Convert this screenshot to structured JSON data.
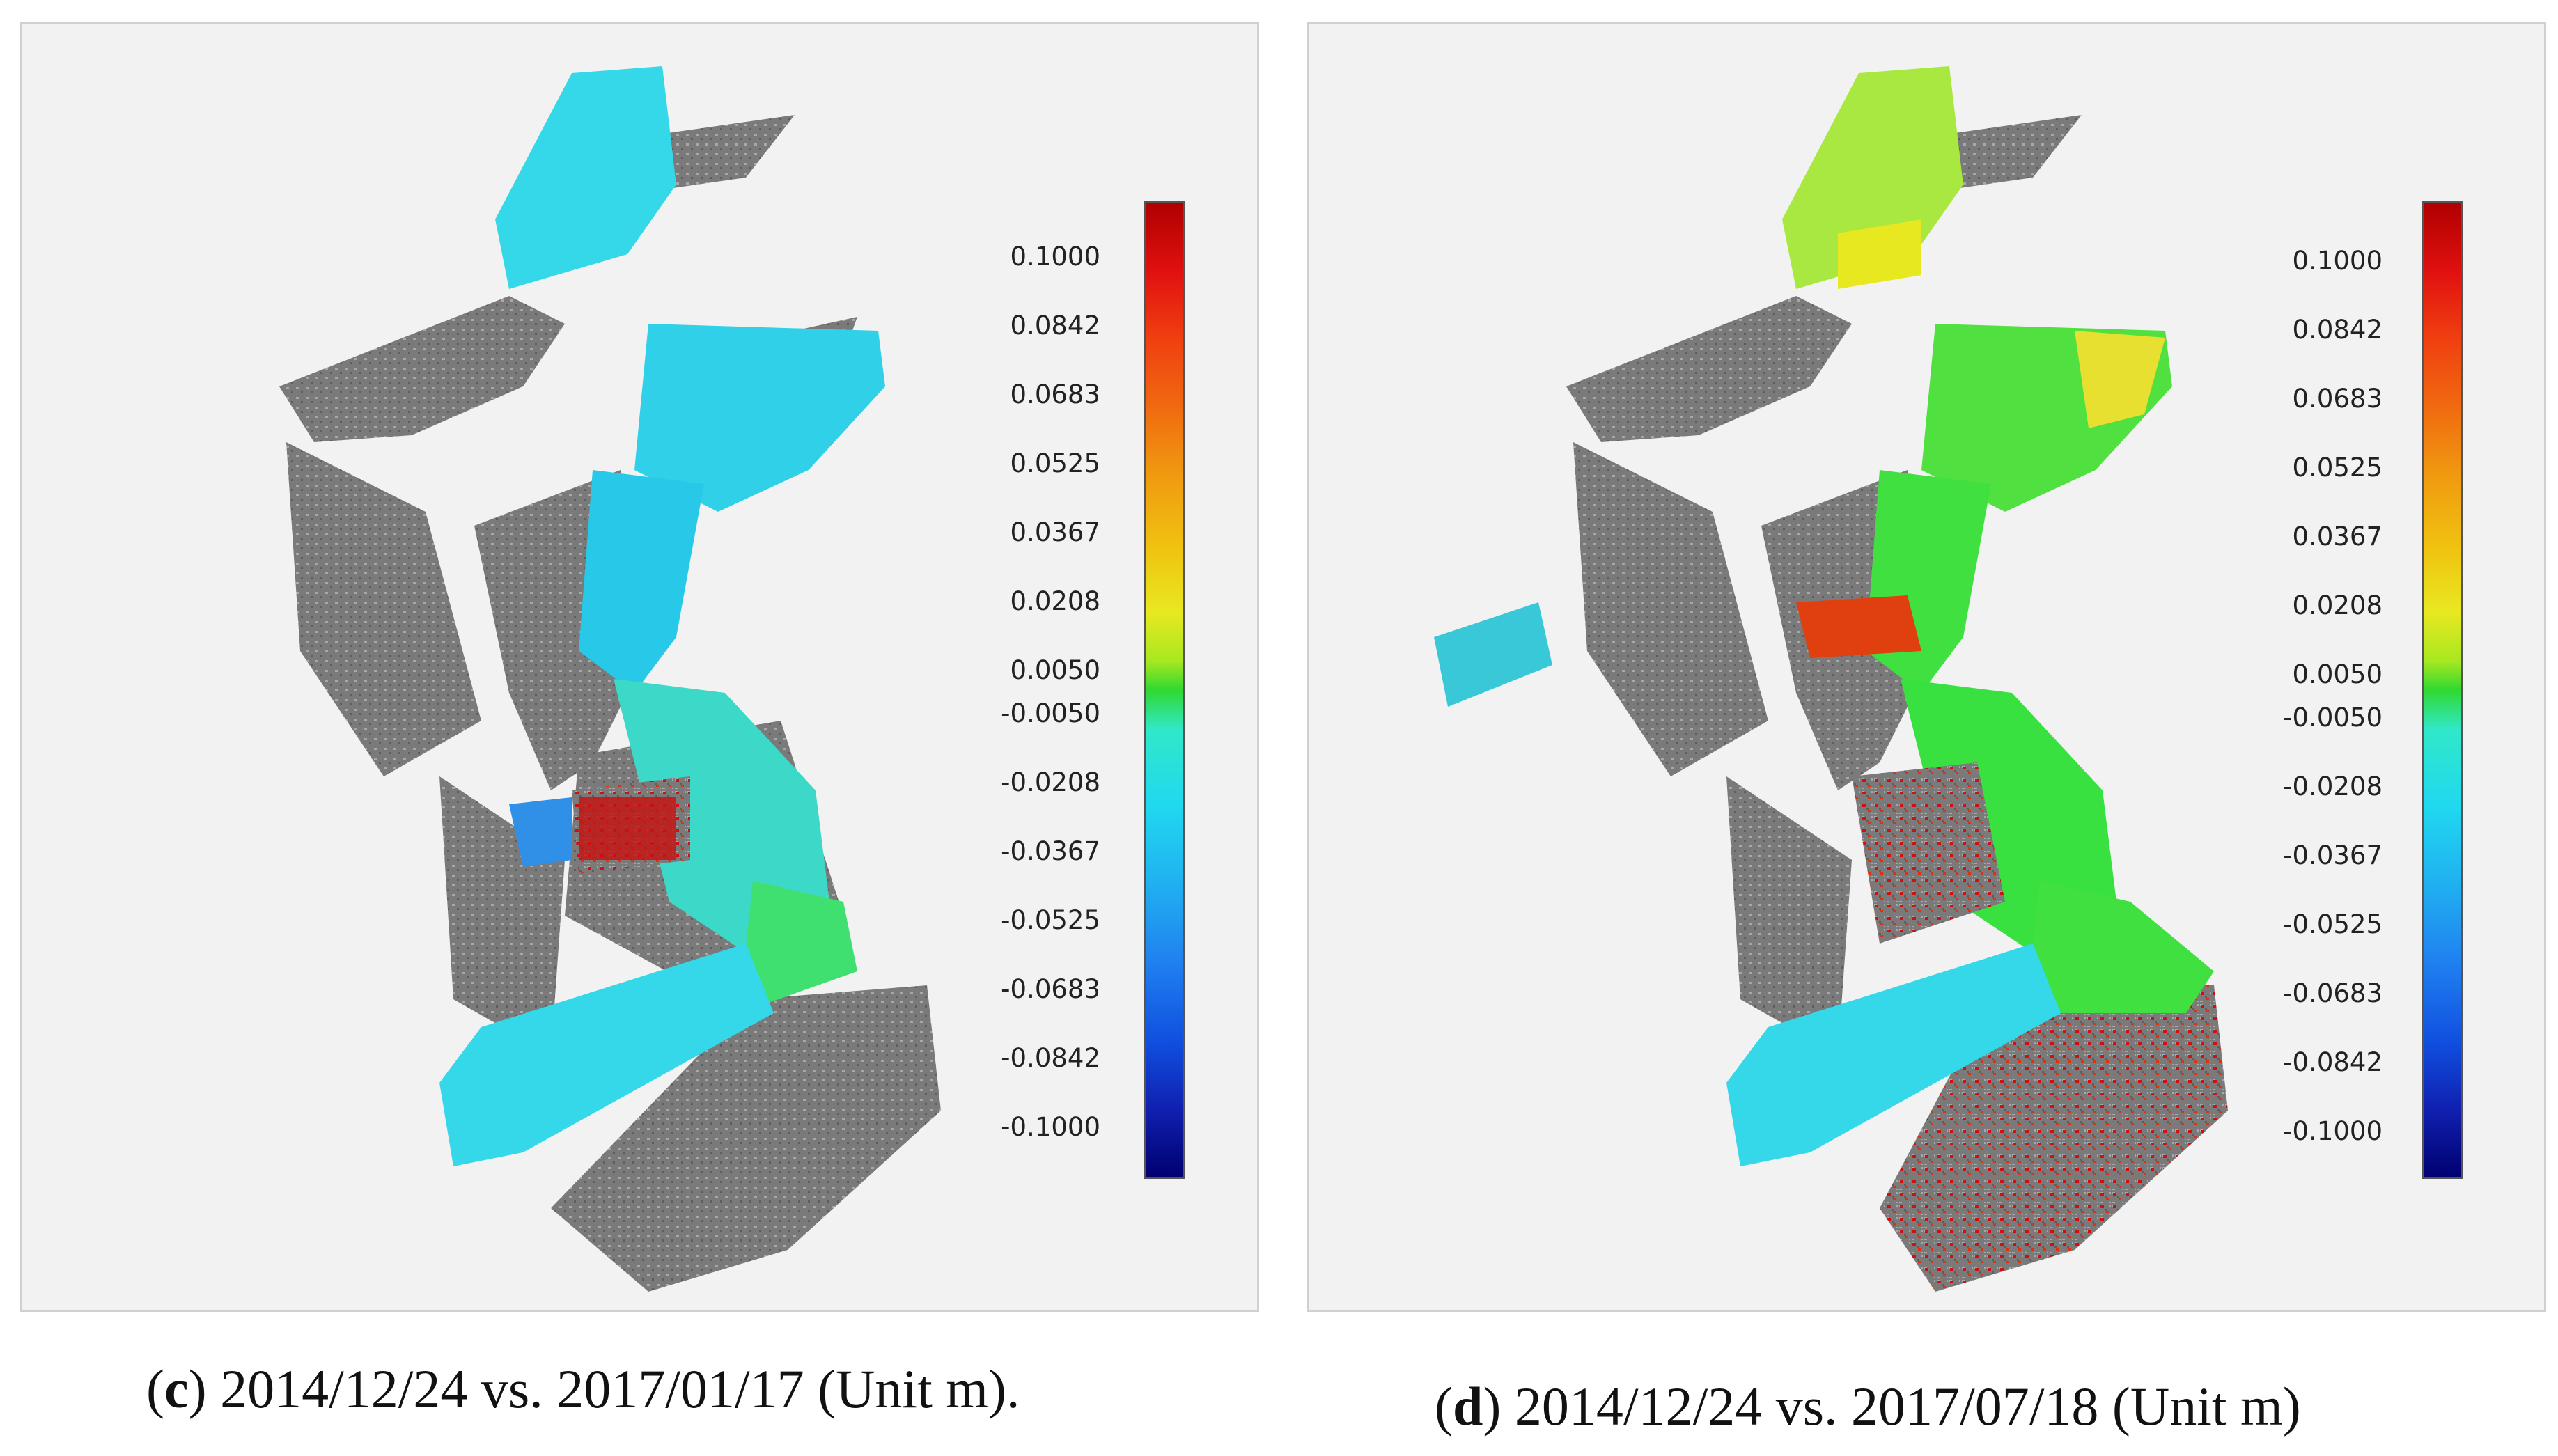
{
  "panels": [
    {
      "id": "c",
      "caption_letter": "c",
      "caption_text": ") 2014/12/24 vs. 2017/01/17 (Unit m).",
      "colorbar_labels": [
        "0.1000",
        "0.0842",
        "0.0683",
        "0.0525",
        "0.0367",
        "0.0208",
        "0.0050",
        "-0.0050",
        "-0.0208",
        "-0.0367",
        "-0.0525",
        "-0.0683",
        "-0.0842",
        "-0.1000"
      ]
    },
    {
      "id": "d",
      "caption_letter": "d",
      "caption_text": ") 2014/12/24 vs. 2017/07/18 (Unit m)",
      "colorbar_labels": [
        "0.1000",
        "0.0842",
        "0.0683",
        "0.0525",
        "0.0367",
        "0.0208",
        "0.0050",
        "-0.0050",
        "-0.0208",
        "-0.0367",
        "-0.0525",
        "-0.0683",
        "-0.0842",
        "-0.1000"
      ]
    }
  ],
  "colors": {
    "colormap": [
      "#b00000",
      "#e01010",
      "#f04010",
      "#f06a10",
      "#f09a10",
      "#f0c010",
      "#e8e820",
      "#a8e820",
      "#30d830",
      "#30e8c8",
      "#20d8f0",
      "#20b0f0",
      "#2080f0",
      "#1050e0",
      "#1020b0",
      "#000070"
    ],
    "point_gray": "#808080",
    "background": "#f2f2f2"
  }
}
